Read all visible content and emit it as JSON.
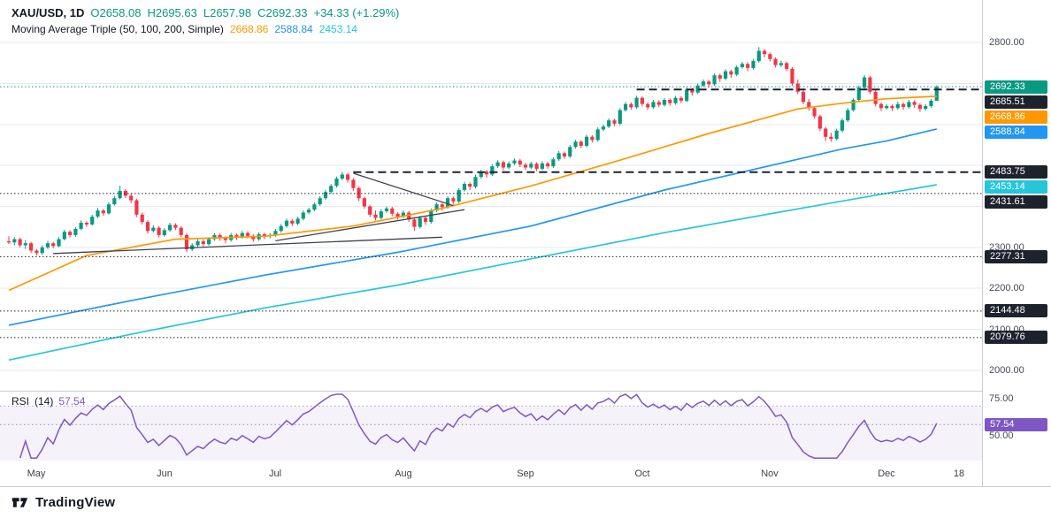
{
  "legend": {
    "symbol": "XAU/USD, 1D",
    "open": "O2658.08",
    "high": "H2695.63",
    "low": "L2657.98",
    "close": "C2692.33",
    "change": "+34.33 (+1.29%)",
    "ma_title": "Moving Average Triple (50, 100, 200, Simple)",
    "ma50_value": "2668.86",
    "ma100_value": "2588.84",
    "ma200_value": "2453.14"
  },
  "rsi_legend": {
    "title": "RSI",
    "params": "(14)",
    "value": "57.54"
  },
  "footer": {
    "brand": "TradingView"
  },
  "colors": {
    "up": "#089981",
    "down": "#F23645",
    "ma50": "#FF9800",
    "ma100": "#2196F3",
    "ma200": "#26C6DA",
    "rsi": "#7E57C2",
    "level": "#1E222D",
    "last_price": "#089981",
    "grid": "#E6E8EE"
  },
  "price_axis": {
    "ticks": [
      2800,
      2300,
      2200,
      2100,
      2000
    ],
    "badges": [
      {
        "label": "2692.33",
        "price": 2692.33,
        "bg": "#089981"
      },
      {
        "label": "2685.51",
        "price": 2685.51,
        "bg": "#1E222D"
      },
      {
        "label": "2668.86",
        "price": 2668.86,
        "bg": "#FF9800"
      },
      {
        "label": "2588.84",
        "price": 2588.84,
        "bg": "#2196F3"
      },
      {
        "label": "2483.75",
        "price": 2483.75,
        "bg": "#1E222D"
      },
      {
        "label": "2453.14",
        "price": 2453.14,
        "bg": "#26C6DA"
      },
      {
        "label": "2431.61",
        "price": 2431.61,
        "bg": "#1E222D"
      },
      {
        "label": "2277.31",
        "price": 2277.31,
        "bg": "#1E222D"
      },
      {
        "label": "2144.48",
        "price": 2144.48,
        "bg": "#1E222D"
      },
      {
        "label": "2079.76",
        "price": 2079.76,
        "bg": "#1E222D"
      }
    ]
  },
  "rsi_axis": {
    "ticks": [
      75,
      50
    ],
    "badge": {
      "label": "57.54",
      "value": 57.54,
      "bg": "#7E57C2"
    }
  },
  "time_axis": {
    "labels": [
      {
        "label": "May",
        "idx": 5
      },
      {
        "label": "Jun",
        "idx": 28
      },
      {
        "label": "Jul",
        "idx": 48
      },
      {
        "label": "Aug",
        "idx": 71
      },
      {
        "label": "Sep",
        "idx": 93
      },
      {
        "label": "Oct",
        "idx": 114
      },
      {
        "label": "Nov",
        "idx": 137
      },
      {
        "label": "Dec",
        "idx": 158
      },
      {
        "label": "18",
        "idx": 171
      }
    ]
  },
  "chart_data": {
    "type": "candlestick",
    "symbol": "XAU/USD",
    "interval": "1D",
    "title": "XAU/USD 1D with Moving Average Triple (50, 100, 200, Simple) and RSI (14)",
    "ylim": [
      1950,
      2904
    ],
    "grid_prices": [
      2800,
      2700,
      2600,
      2500,
      2400,
      2300,
      2200,
      2100,
      2000
    ],
    "last_price": 2692.33,
    "ohlc_last": {
      "o": 2658.08,
      "h": 2695.63,
      "l": 2657.98,
      "c": 2692.33,
      "change": 34.33,
      "change_pct": 1.29
    },
    "candles": [
      [
        2315,
        2327,
        2308,
        2312
      ],
      [
        2312,
        2325,
        2305,
        2320
      ],
      [
        2320,
        2324,
        2300,
        2305
      ],
      [
        2305,
        2318,
        2296,
        2310
      ],
      [
        2310,
        2314,
        2286,
        2292
      ],
      [
        2292,
        2296,
        2280,
        2286
      ],
      [
        2286,
        2305,
        2282,
        2300
      ],
      [
        2300,
        2316,
        2296,
        2310
      ],
      [
        2310,
        2314,
        2298,
        2303
      ],
      [
        2303,
        2325,
        2300,
        2320
      ],
      [
        2320,
        2343,
        2317,
        2338
      ],
      [
        2338,
        2342,
        2324,
        2330
      ],
      [
        2330,
        2350,
        2326,
        2345
      ],
      [
        2345,
        2366,
        2342,
        2360
      ],
      [
        2360,
        2364,
        2350,
        2356
      ],
      [
        2356,
        2380,
        2353,
        2375
      ],
      [
        2375,
        2396,
        2371,
        2390
      ],
      [
        2390,
        2394,
        2377,
        2383
      ],
      [
        2383,
        2410,
        2380,
        2405
      ],
      [
        2405,
        2426,
        2402,
        2420
      ],
      [
        2420,
        2450,
        2417,
        2438
      ],
      [
        2438,
        2442,
        2420,
        2426
      ],
      [
        2426,
        2432,
        2408,
        2415
      ],
      [
        2415,
        2419,
        2374,
        2380
      ],
      [
        2380,
        2385,
        2356,
        2362
      ],
      [
        2362,
        2366,
        2334,
        2340
      ],
      [
        2340,
        2354,
        2336,
        2348
      ],
      [
        2348,
        2352,
        2324,
        2330
      ],
      [
        2330,
        2347,
        2326,
        2342
      ],
      [
        2342,
        2360,
        2338,
        2355
      ],
      [
        2355,
        2359,
        2342,
        2348
      ],
      [
        2348,
        2352,
        2325,
        2330
      ],
      [
        2330,
        2334,
        2288,
        2295
      ],
      [
        2295,
        2310,
        2291,
        2305
      ],
      [
        2305,
        2320,
        2301,
        2315
      ],
      [
        2315,
        2319,
        2302,
        2308
      ],
      [
        2308,
        2325,
        2304,
        2320
      ],
      [
        2320,
        2335,
        2316,
        2330
      ],
      [
        2330,
        2334,
        2316,
        2322
      ],
      [
        2322,
        2326,
        2310,
        2318
      ],
      [
        2318,
        2335,
        2314,
        2330
      ],
      [
        2330,
        2334,
        2318,
        2325
      ],
      [
        2325,
        2340,
        2321,
        2335
      ],
      [
        2335,
        2339,
        2322,
        2328
      ],
      [
        2328,
        2332,
        2314,
        2320
      ],
      [
        2320,
        2337,
        2316,
        2332
      ],
      [
        2332,
        2336,
        2320,
        2327
      ],
      [
        2327,
        2335,
        2322,
        2330
      ],
      [
        2330,
        2345,
        2326,
        2340
      ],
      [
        2340,
        2357,
        2336,
        2352
      ],
      [
        2352,
        2370,
        2348,
        2365
      ],
      [
        2365,
        2369,
        2352,
        2358
      ],
      [
        2358,
        2375,
        2354,
        2370
      ],
      [
        2370,
        2390,
        2366,
        2385
      ],
      [
        2385,
        2397,
        2381,
        2392
      ],
      [
        2392,
        2410,
        2388,
        2405
      ],
      [
        2405,
        2425,
        2401,
        2420
      ],
      [
        2420,
        2440,
        2416,
        2435
      ],
      [
        2435,
        2455,
        2431,
        2450
      ],
      [
        2450,
        2473,
        2446,
        2468
      ],
      [
        2468,
        2484,
        2464,
        2478
      ],
      [
        2478,
        2482,
        2458,
        2465
      ],
      [
        2465,
        2469,
        2438,
        2445
      ],
      [
        2445,
        2449,
        2413,
        2420
      ],
      [
        2420,
        2424,
        2394,
        2400
      ],
      [
        2400,
        2404,
        2374,
        2380
      ],
      [
        2380,
        2390,
        2366,
        2372
      ],
      [
        2372,
        2393,
        2368,
        2388
      ],
      [
        2388,
        2400,
        2384,
        2395
      ],
      [
        2395,
        2399,
        2376,
        2382
      ],
      [
        2382,
        2386,
        2368,
        2375
      ],
      [
        2375,
        2390,
        2371,
        2385
      ],
      [
        2385,
        2389,
        2362,
        2368
      ],
      [
        2368,
        2372,
        2340,
        2350
      ],
      [
        2350,
        2377,
        2346,
        2372
      ],
      [
        2372,
        2376,
        2355,
        2362
      ],
      [
        2362,
        2395,
        2358,
        2390
      ],
      [
        2390,
        2410,
        2386,
        2405
      ],
      [
        2405,
        2409,
        2390,
        2398
      ],
      [
        2398,
        2425,
        2394,
        2420
      ],
      [
        2420,
        2424,
        2405,
        2412
      ],
      [
        2412,
        2445,
        2408,
        2440
      ],
      [
        2440,
        2460,
        2436,
        2455
      ],
      [
        2455,
        2459,
        2440,
        2448
      ],
      [
        2448,
        2477,
        2444,
        2472
      ],
      [
        2472,
        2490,
        2468,
        2485
      ],
      [
        2485,
        2489,
        2470,
        2478
      ],
      [
        2478,
        2503,
        2474,
        2498
      ],
      [
        2498,
        2513,
        2494,
        2508
      ],
      [
        2508,
        2512,
        2488,
        2495
      ],
      [
        2495,
        2510,
        2491,
        2505
      ],
      [
        2505,
        2517,
        2501,
        2512
      ],
      [
        2512,
        2516,
        2496,
        2502
      ],
      [
        2502,
        2506,
        2489,
        2495
      ],
      [
        2495,
        2509,
        2491,
        2504
      ],
      [
        2504,
        2508,
        2486,
        2492
      ],
      [
        2492,
        2510,
        2488,
        2505
      ],
      [
        2505,
        2509,
        2492,
        2498
      ],
      [
        2498,
        2520,
        2494,
        2515
      ],
      [
        2515,
        2535,
        2511,
        2530
      ],
      [
        2530,
        2534,
        2516,
        2522
      ],
      [
        2522,
        2550,
        2518,
        2545
      ],
      [
        2545,
        2563,
        2541,
        2558
      ],
      [
        2558,
        2562,
        2542,
        2548
      ],
      [
        2548,
        2575,
        2544,
        2570
      ],
      [
        2570,
        2574,
        2556,
        2562
      ],
      [
        2562,
        2593,
        2558,
        2588
      ],
      [
        2588,
        2600,
        2584,
        2595
      ],
      [
        2595,
        2615,
        2591,
        2610
      ],
      [
        2610,
        2614,
        2596,
        2602
      ],
      [
        2602,
        2640,
        2598,
        2635
      ],
      [
        2635,
        2655,
        2631,
        2650
      ],
      [
        2650,
        2654,
        2636,
        2642
      ],
      [
        2642,
        2670,
        2638,
        2665
      ],
      [
        2665,
        2669,
        2644,
        2650
      ],
      [
        2650,
        2654,
        2636,
        2642
      ],
      [
        2642,
        2660,
        2638,
        2655
      ],
      [
        2655,
        2659,
        2642,
        2648
      ],
      [
        2648,
        2665,
        2644,
        2660
      ],
      [
        2660,
        2664,
        2646,
        2652
      ],
      [
        2652,
        2670,
        2648,
        2665
      ],
      [
        2665,
        2669,
        2652,
        2658
      ],
      [
        2658,
        2690,
        2654,
        2685
      ],
      [
        2685,
        2689,
        2670,
        2678
      ],
      [
        2678,
        2700,
        2674,
        2695
      ],
      [
        2695,
        2710,
        2691,
        2705
      ],
      [
        2705,
        2709,
        2690,
        2698
      ],
      [
        2698,
        2725,
        2694,
        2720
      ],
      [
        2720,
        2724,
        2704,
        2712
      ],
      [
        2712,
        2735,
        2708,
        2730
      ],
      [
        2730,
        2734,
        2714,
        2722
      ],
      [
        2722,
        2745,
        2718,
        2740
      ],
      [
        2740,
        2753,
        2736,
        2748
      ],
      [
        2748,
        2752,
        2730,
        2738
      ],
      [
        2738,
        2760,
        2734,
        2755
      ],
      [
        2755,
        2789,
        2751,
        2780
      ],
      [
        2780,
        2784,
        2764,
        2772
      ],
      [
        2772,
        2776,
        2754,
        2760
      ],
      [
        2760,
        2764,
        2739,
        2745
      ],
      [
        2745,
        2756,
        2741,
        2750
      ],
      [
        2750,
        2754,
        2730,
        2736
      ],
      [
        2736,
        2740,
        2694,
        2700
      ],
      [
        2700,
        2710,
        2674,
        2680
      ],
      [
        2680,
        2684,
        2649,
        2655
      ],
      [
        2655,
        2662,
        2634,
        2640
      ],
      [
        2640,
        2644,
        2614,
        2620
      ],
      [
        2620,
        2624,
        2584,
        2590
      ],
      [
        2590,
        2594,
        2560,
        2570
      ],
      [
        2570,
        2580,
        2558,
        2565
      ],
      [
        2565,
        2590,
        2561,
        2585
      ],
      [
        2585,
        2615,
        2581,
        2610
      ],
      [
        2610,
        2640,
        2606,
        2635
      ],
      [
        2635,
        2665,
        2631,
        2660
      ],
      [
        2660,
        2695,
        2656,
        2690
      ],
      [
        2690,
        2721,
        2686,
        2715
      ],
      [
        2715,
        2719,
        2674,
        2680
      ],
      [
        2680,
        2684,
        2644,
        2650
      ],
      [
        2650,
        2654,
        2633,
        2640
      ],
      [
        2640,
        2650,
        2636,
        2645
      ],
      [
        2645,
        2649,
        2633,
        2640
      ],
      [
        2640,
        2656,
        2636,
        2650
      ],
      [
        2650,
        2654,
        2636,
        2643
      ],
      [
        2643,
        2660,
        2639,
        2655
      ],
      [
        2655,
        2659,
        2641,
        2648
      ],
      [
        2648,
        2652,
        2631,
        2638
      ],
      [
        2638,
        2650,
        2634,
        2645
      ],
      [
        2645,
        2663,
        2641,
        2658
      ],
      [
        2658.08,
        2695.63,
        2657.98,
        2692.33
      ]
    ],
    "ma50": [
      [
        0,
        2195
      ],
      [
        14,
        2280
      ],
      [
        30,
        2320
      ],
      [
        46,
        2327
      ],
      [
        62,
        2352
      ],
      [
        78,
        2395
      ],
      [
        94,
        2450
      ],
      [
        110,
        2513
      ],
      [
        126,
        2578
      ],
      [
        142,
        2638
      ],
      [
        150,
        2652
      ],
      [
        158,
        2663
      ],
      [
        167,
        2669
      ]
    ],
    "ma100": [
      [
        0,
        2110
      ],
      [
        22,
        2170
      ],
      [
        46,
        2232
      ],
      [
        70,
        2288
      ],
      [
        94,
        2352
      ],
      [
        118,
        2440
      ],
      [
        142,
        2515
      ],
      [
        150,
        2540
      ],
      [
        158,
        2560
      ],
      [
        167,
        2589
      ]
    ],
    "ma200": [
      [
        0,
        2025
      ],
      [
        22,
        2088
      ],
      [
        46,
        2152
      ],
      [
        70,
        2208
      ],
      [
        94,
        2272
      ],
      [
        118,
        2336
      ],
      [
        142,
        2394
      ],
      [
        158,
        2432
      ],
      [
        167,
        2453
      ]
    ],
    "levels": [
      {
        "price": 2692.33,
        "style": "dotted",
        "color": "#089981",
        "from": 0
      },
      {
        "price": 2685.51,
        "style": "dashed",
        "color": "#1E222D",
        "from": 113
      },
      {
        "price": 2483.75,
        "style": "dashed",
        "color": "#1E222D",
        "from": 62
      },
      {
        "price": 2431.61,
        "style": "dotted",
        "color": "#1E222D",
        "from": 0
      },
      {
        "price": 2277.31,
        "style": "dotted",
        "color": "#1E222D",
        "from": 0
      },
      {
        "price": 2144.48,
        "style": "dotted",
        "color": "#1E222D",
        "from": 0
      },
      {
        "price": 2079.76,
        "style": "dotted",
        "color": "#1E222D",
        "from": 0
      }
    ],
    "trendlines": [
      [
        8,
        2285,
        78,
        2325
      ],
      [
        48,
        2316,
        82,
        2392
      ],
      [
        62,
        2481,
        80,
        2402
      ]
    ],
    "rsi": {
      "period": 14,
      "upper": 70,
      "lower": 30,
      "mid": 50,
      "last": 57.54
    }
  }
}
